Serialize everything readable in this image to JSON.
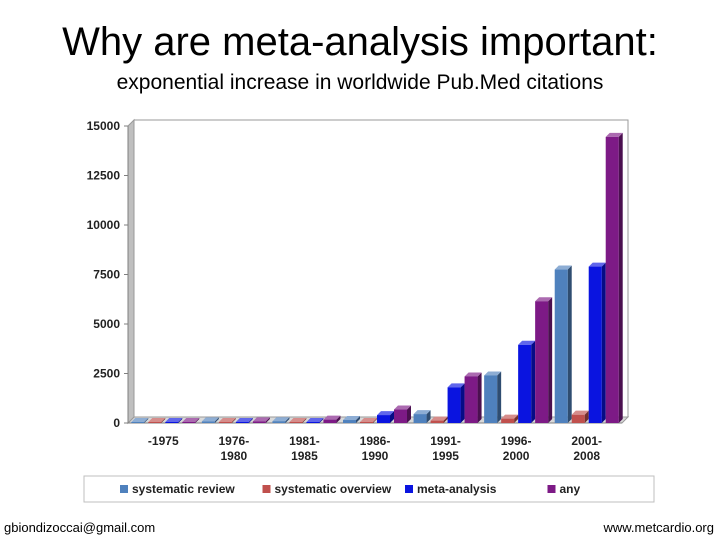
{
  "slide": {
    "title": "Why are meta-analysis important:",
    "subtitle": "exponential increase in  worldwide Pub.Med citations"
  },
  "footer": {
    "left": "gbiondizoccai@gmail.com",
    "right": "www.metcardio.org"
  },
  "chart_data": {
    "type": "bar",
    "style": "3d-clustered",
    "categories": [
      "-1975",
      "1976-\n1980",
      "1981-\n1985",
      "1986-\n1990",
      "1991-\n1995",
      "1996-\n2000",
      "2001-\n2008"
    ],
    "series": [
      {
        "name": "systematic review",
        "color": "#4f81bd",
        "values": [
          30,
          80,
          90,
          150,
          450,
          2400,
          7750
        ]
      },
      {
        "name": "systematic overview",
        "color": "#c0504d",
        "values": [
          10,
          20,
          20,
          40,
          120,
          220,
          420
        ]
      },
      {
        "name": "meta-analysis",
        "color": "#0a14e0",
        "values": [
          10,
          20,
          40,
          400,
          1800,
          3950,
          7900
        ]
      },
      {
        "name": "any",
        "color": "#7d1a86",
        "values": [
          30,
          80,
          170,
          680,
          2350,
          6150,
          14450
        ]
      }
    ],
    "yticks": [
      0,
      2500,
      5000,
      7500,
      10000,
      12500,
      15000
    ],
    "ylim": [
      0,
      15000
    ],
    "xlabel": "",
    "ylabel": "",
    "grid": false,
    "legend": "bottom"
  }
}
